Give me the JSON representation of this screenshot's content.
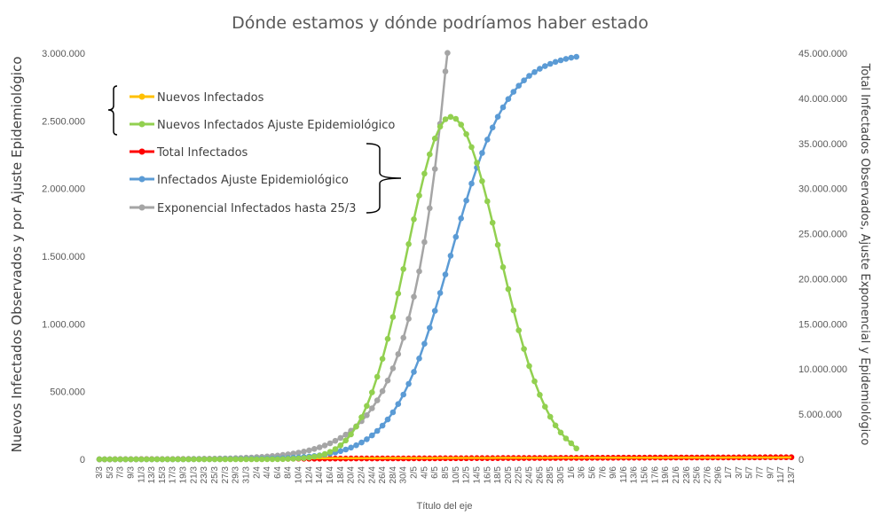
{
  "chart_data": {
    "type": "line",
    "title": "Dónde estamos y dónde podríamos haber estado",
    "xlabel": "Título del eje",
    "ylabel_left": "Nuevos Infectados Observados y por Ajuste Epidemiológico",
    "ylabel_right": "Total Infectados Observados, Ajuste Exponencial y Epidemiológico",
    "y_left_lim": [
      0,
      3000000
    ],
    "y_right_lim": [
      0,
      45000000
    ],
    "y_left_ticks": [
      "0",
      "500.000",
      "1.000.000",
      "1.500.000",
      "2.000.000",
      "2.500.000",
      "3.000.000"
    ],
    "y_right_ticks": [
      "0",
      "5.000.000",
      "10.000.000",
      "15.000.000",
      "20.000.000",
      "25.000.000",
      "30.000.000",
      "35.000.000",
      "40.000.000",
      "45.000.000"
    ],
    "x_ticks": [
      "3/3",
      "5/3",
      "7/3",
      "9/3",
      "11/3",
      "13/3",
      "15/3",
      "17/3",
      "19/3",
      "21/3",
      "23/3",
      "25/3",
      "27/3",
      "29/3",
      "31/3",
      "2/4",
      "4/4",
      "6/4",
      "8/4",
      "10/4",
      "12/4",
      "14/4",
      "16/4",
      "18/4",
      "20/4",
      "22/4",
      "24/4",
      "26/4",
      "28/4",
      "30/4",
      "2/5",
      "4/5",
      "6/5",
      "8/5",
      "10/5",
      "12/5",
      "14/5",
      "16/5",
      "18/5",
      "20/5",
      "22/5",
      "24/5",
      "26/5",
      "28/5",
      "30/5",
      "1/6",
      "3/6",
      "5/6",
      "7/6",
      "9/6",
      "11/6",
      "13/6",
      "15/6",
      "17/6",
      "19/6",
      "21/6",
      "23/6",
      "25/6",
      "27/6",
      "29/6",
      "1/7",
      "3/7",
      "5/7",
      "7/7",
      "9/7",
      "11/7",
      "13/7"
    ],
    "x_start": "3/3",
    "x_count": 133,
    "legend": {
      "placement": "top-left inside plot",
      "group_left_axis": [
        "Nuevos Infectados",
        "Nuevos Infectados Ajuste Epidemiológico"
      ],
      "group_right_axis": [
        "Total Infectados",
        "Infectados Ajuste Epidemiológico",
        "Exponencial Infectados hasta 25/3"
      ]
    },
    "grid": false,
    "series": [
      {
        "name": "Nuevos Infectados",
        "axis": "left",
        "color": "#FFC000",
        "x_range": [
          "3/3",
          "13/7"
        ],
        "values_note": "near zero throughout",
        "values": [
          0,
          0,
          0
        ]
      },
      {
        "name": "Nuevos Infectados Ajuste Epidemiológico",
        "axis": "left",
        "color": "#92D050",
        "x_range": [
          "3/3",
          "2/6"
        ],
        "peak": {
          "x": "9/5",
          "y": 2530000
        },
        "end": {
          "x": "2/6",
          "y": 80000
        }
      },
      {
        "name": "Total Infectados",
        "axis": "right",
        "color": "#FF0000",
        "x_range": [
          "3/3",
          "13/7"
        ],
        "end": {
          "x": "13/7",
          "y": 230000
        }
      },
      {
        "name": "Infectados Ajuste Epidemiológico",
        "axis": "right",
        "color": "#5B9BD5",
        "x_range": [
          "3/3",
          "2/6"
        ],
        "end": {
          "x": "2/6",
          "y": 44600000
        }
      },
      {
        "name": "Exponencial Infectados hasta 25/3",
        "axis": "right",
        "color": "#A5A5A5",
        "x_range": [
          "3/3",
          "8/5"
        ],
        "end": {
          "x": "8/5",
          "y": 43300000
        }
      }
    ]
  }
}
